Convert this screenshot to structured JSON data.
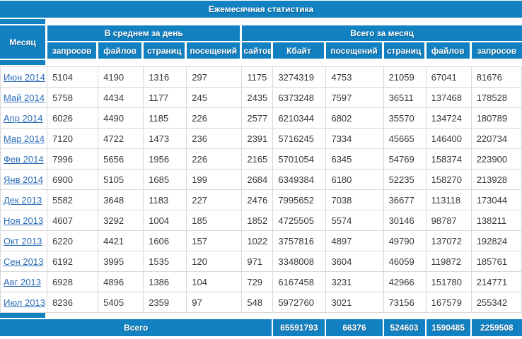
{
  "title": "Ежемесячная статистика",
  "header": {
    "month": "Месяц",
    "daily_avg": {
      "label": "В среднем за день",
      "columns": [
        "запросов",
        "файлов",
        "страниц",
        "посещений"
      ]
    },
    "monthly_total": {
      "label": "Всего за месяц",
      "columns": [
        "сайтов",
        "Кбайт",
        "посещений",
        "страниц",
        "файлов",
        "запросов"
      ]
    }
  },
  "rows": [
    {
      "month": "Июн 2014",
      "values": [
        "5104",
        "4190",
        "1316",
        "297",
        "1175",
        "3274319",
        "4753",
        "21059",
        "67041",
        "81676"
      ]
    },
    {
      "month": "Май 2014",
      "values": [
        "5758",
        "4434",
        "1177",
        "245",
        "2435",
        "6373248",
        "7597",
        "36511",
        "137468",
        "178528"
      ]
    },
    {
      "month": "Апр 2014",
      "values": [
        "6026",
        "4490",
        "1185",
        "226",
        "2577",
        "6210344",
        "6802",
        "35570",
        "134724",
        "180789"
      ]
    },
    {
      "month": "Мар 2014",
      "values": [
        "7120",
        "4722",
        "1473",
        "236",
        "2391",
        "5716245",
        "7334",
        "45665",
        "146400",
        "220734"
      ]
    },
    {
      "month": "Фев 2014",
      "values": [
        "7996",
        "5656",
        "1956",
        "226",
        "2165",
        "5701054",
        "6345",
        "54769",
        "158374",
        "223900"
      ]
    },
    {
      "month": "Янв 2014",
      "values": [
        "6900",
        "5105",
        "1685",
        "199",
        "2684",
        "6349384",
        "6180",
        "52235",
        "158270",
        "213928"
      ]
    },
    {
      "month": "Дек 2013",
      "values": [
        "5582",
        "3648",
        "1183",
        "227",
        "2476",
        "7995652",
        "7038",
        "36677",
        "113118",
        "173044"
      ]
    },
    {
      "month": "Ноя 2013",
      "values": [
        "4607",
        "3292",
        "1004",
        "185",
        "1852",
        "4725505",
        "5574",
        "30146",
        "98787",
        "138211"
      ]
    },
    {
      "month": "Окт 2013",
      "values": [
        "6220",
        "4421",
        "1606",
        "157",
        "1022",
        "3757816",
        "4897",
        "49790",
        "137072",
        "192824"
      ]
    },
    {
      "month": "Сен 2013",
      "values": [
        "6192",
        "3995",
        "1535",
        "120",
        "971",
        "3348008",
        "3604",
        "46059",
        "119872",
        "185761"
      ]
    },
    {
      "month": "Авг 2013",
      "values": [
        "6928",
        "4896",
        "1386",
        "104",
        "729",
        "6167458",
        "3231",
        "42966",
        "151780",
        "214771"
      ]
    },
    {
      "month": "Июл 2013",
      "values": [
        "8236",
        "5405",
        "2359",
        "97",
        "548",
        "5972760",
        "3021",
        "73156",
        "167579",
        "255342"
      ]
    }
  ],
  "footer": {
    "label": "Всего",
    "totals": [
      "65591793",
      "66376",
      "524603",
      "1590485",
      "2259508"
    ]
  },
  "colors": {
    "accent": "#1181c2",
    "link": "#2b6cb8",
    "grid": "#d8d8d8",
    "header_text": "#ffffff",
    "cell_text": "#363636"
  }
}
